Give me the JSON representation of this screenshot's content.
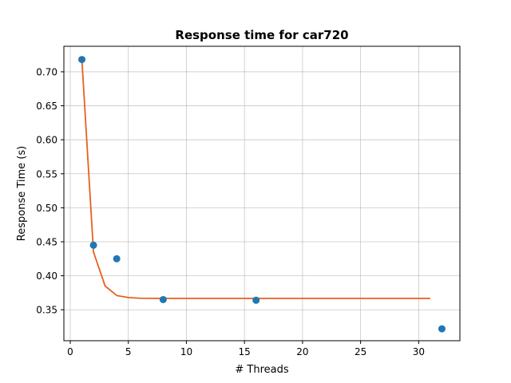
{
  "chart_data": {
    "type": "scatter",
    "title": "Response time for car720",
    "xlabel": "# Threads",
    "ylabel": "Response Time (s)",
    "xlim": [
      -0.55,
      33.55
    ],
    "ylim": [
      0.3045,
      0.7375
    ],
    "xticks": [
      0,
      5,
      10,
      15,
      20,
      25,
      30
    ],
    "yticks": [
      0.35,
      0.4,
      0.45,
      0.5,
      0.55,
      0.6,
      0.65,
      0.7
    ],
    "ytick_labels": [
      "0.35",
      "0.40",
      "0.45",
      "0.50",
      "0.55",
      "0.60",
      "0.65",
      "0.70"
    ],
    "grid": true,
    "series": [
      {
        "kind": "scatter",
        "color": "#1f77b4",
        "x": [
          1,
          2,
          4,
          8,
          16,
          32
        ],
        "y": [
          0.718,
          0.445,
          0.425,
          0.365,
          0.364,
          0.322
        ]
      },
      {
        "kind": "line",
        "color": "#e8601c",
        "x": [
          1,
          2,
          3,
          4,
          5,
          6,
          7,
          8,
          9,
          10,
          11,
          12,
          13,
          14,
          15,
          16,
          17,
          18,
          19,
          20,
          21,
          22,
          23,
          24,
          25,
          26,
          27,
          28,
          29,
          30,
          31
        ],
        "y": [
          0.718,
          0.435,
          0.385,
          0.371,
          0.368,
          0.367,
          0.3668,
          0.3667,
          0.3667,
          0.3667,
          0.3667,
          0.3667,
          0.3667,
          0.3667,
          0.3667,
          0.3667,
          0.3667,
          0.3667,
          0.3667,
          0.3667,
          0.3667,
          0.3667,
          0.3667,
          0.3667,
          0.3667,
          0.3667,
          0.3667,
          0.3667,
          0.3667,
          0.3667,
          0.3667
        ]
      }
    ]
  }
}
